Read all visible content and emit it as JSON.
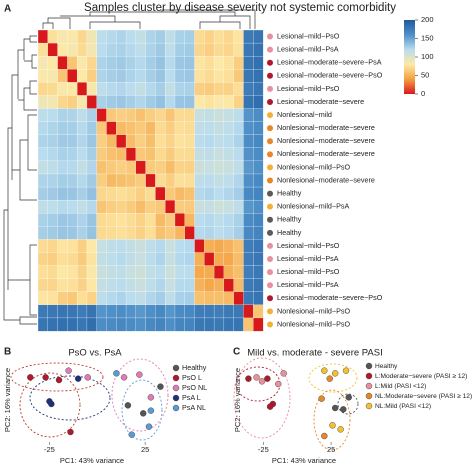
{
  "chart_data": [
    {
      "type": "heatmap",
      "panel": "A",
      "title": "Samples cluster by disease severity not systemic comorbidity",
      "rows": [
        "Lesional−mild−PsO",
        "Lesional−mild−PsA",
        "Lesional−moderate−severe−PsA",
        "Lesional−moderate−severe−PsO",
        "Lesional−mild−PsO",
        "Lesional−moderate−severe",
        "Nonlesional−mild",
        "Nonlesional−moderate−severe",
        "Nonlesional−moderate−severe",
        "Nonlesional−moderate−severe",
        "Nonlesional−mild−PsO",
        "Nonlesional−moderate−severe",
        "Healthy",
        "Nonlesional−mild−PsA",
        "Healthy",
        "Healthy",
        "Lesional−mild−PsO",
        "Lesional−mild−PsA",
        "Lesional−mild−PsO",
        "Lesional−mild−PsA",
        "Lesional−moderate−severe−PsO",
        "Nonlesional−mild−PsO",
        "Nonlesional−mild−PsO"
      ],
      "row_colors": [
        "#e8909c",
        "#e8909c",
        "#b2182b",
        "#b2182b",
        "#e8909c",
        "#b2182b",
        "#f2b134",
        "#e8862a",
        "#e8862a",
        "#e8862a",
        "#f2b134",
        "#e8862a",
        "#5a5a5a",
        "#f2b134",
        "#5a5a5a",
        "#5a5a5a",
        "#e8909c",
        "#e8909c",
        "#e8909c",
        "#e8909c",
        "#b2182b",
        "#f2b134",
        "#f2b134"
      ],
      "z": [
        [
          0,
          75,
          85,
          82,
          70,
          88,
          118,
          122,
          125,
          120,
          115,
          124,
          128,
          116,
          126,
          127,
          72,
          68,
          74,
          70,
          78,
          176,
          180
        ],
        [
          75,
          0,
          80,
          84,
          72,
          86,
          120,
          124,
          126,
          122,
          117,
          125,
          130,
          118,
          128,
          129,
          70,
          66,
          72,
          69,
          76,
          178,
          182
        ],
        [
          85,
          80,
          0,
          60,
          82,
          70,
          125,
          128,
          130,
          126,
          122,
          128,
          133,
          121,
          131,
          132,
          78,
          74,
          80,
          76,
          65,
          180,
          184
        ],
        [
          82,
          84,
          60,
          0,
          80,
          66,
          124,
          127,
          129,
          125,
          121,
          127,
          132,
          120,
          130,
          131,
          76,
          72,
          78,
          75,
          62,
          179,
          183
        ],
        [
          70,
          72,
          82,
          80,
          0,
          84,
          117,
          121,
          123,
          119,
          114,
          122,
          127,
          115,
          125,
          126,
          66,
          64,
          68,
          67,
          74,
          175,
          179
        ],
        [
          88,
          86,
          70,
          66,
          84,
          0,
          126,
          129,
          131,
          127,
          123,
          129,
          134,
          122,
          132,
          133,
          80,
          77,
          82,
          79,
          68,
          181,
          185
        ],
        [
          118,
          120,
          125,
          124,
          117,
          126,
          0,
          62,
          66,
          64,
          58,
          65,
          70,
          60,
          72,
          71,
          112,
          114,
          110,
          113,
          118,
          158,
          162
        ],
        [
          122,
          124,
          128,
          127,
          121,
          129,
          62,
          0,
          55,
          58,
          63,
          54,
          72,
          65,
          74,
          73,
          116,
          118,
          114,
          117,
          122,
          160,
          164
        ],
        [
          125,
          126,
          130,
          129,
          123,
          131,
          66,
          55,
          0,
          56,
          66,
          57,
          74,
          68,
          76,
          75,
          119,
          121,
          117,
          120,
          125,
          162,
          166
        ],
        [
          120,
          122,
          126,
          125,
          119,
          127,
          64,
          58,
          56,
          0,
          62,
          59,
          71,
          64,
          73,
          72,
          114,
          116,
          112,
          115,
          120,
          159,
          163
        ],
        [
          115,
          117,
          122,
          121,
          114,
          123,
          58,
          63,
          66,
          62,
          0,
          64,
          66,
          56,
          68,
          67,
          110,
          112,
          108,
          111,
          116,
          156,
          160
        ],
        [
          124,
          125,
          128,
          127,
          122,
          129,
          65,
          54,
          57,
          59,
          64,
          0,
          73,
          66,
          75,
          74,
          117,
          119,
          115,
          118,
          123,
          161,
          165
        ],
        [
          128,
          130,
          133,
          132,
          127,
          134,
          70,
          72,
          74,
          71,
          66,
          73,
          0,
          62,
          55,
          58,
          122,
          124,
          120,
          123,
          128,
          165,
          169
        ],
        [
          116,
          118,
          121,
          120,
          115,
          122,
          60,
          65,
          68,
          64,
          56,
          66,
          62,
          0,
          64,
          63,
          111,
          113,
          109,
          112,
          117,
          157,
          161
        ],
        [
          126,
          128,
          131,
          130,
          125,
          132,
          72,
          74,
          76,
          73,
          68,
          75,
          55,
          64,
          0,
          52,
          120,
          122,
          118,
          121,
          126,
          164,
          168
        ],
        [
          127,
          129,
          132,
          131,
          126,
          133,
          71,
          73,
          75,
          72,
          67,
          74,
          58,
          63,
          52,
          0,
          121,
          123,
          119,
          122,
          127,
          165,
          169
        ],
        [
          72,
          70,
          78,
          76,
          66,
          80,
          112,
          116,
          119,
          114,
          110,
          117,
          122,
          111,
          120,
          121,
          0,
          48,
          45,
          50,
          58,
          174,
          178
        ],
        [
          68,
          66,
          74,
          72,
          64,
          77,
          114,
          118,
          121,
          116,
          112,
          119,
          124,
          113,
          122,
          123,
          48,
          0,
          46,
          44,
          56,
          175,
          179
        ],
        [
          74,
          72,
          80,
          78,
          68,
          82,
          110,
          114,
          117,
          112,
          108,
          115,
          120,
          109,
          118,
          119,
          45,
          46,
          0,
          49,
          57,
          173,
          177
        ],
        [
          70,
          69,
          76,
          75,
          67,
          79,
          113,
          117,
          120,
          115,
          111,
          118,
          123,
          112,
          121,
          122,
          50,
          44,
          49,
          0,
          55,
          176,
          180
        ],
        [
          78,
          76,
          65,
          62,
          74,
          68,
          118,
          122,
          125,
          120,
          116,
          123,
          128,
          117,
          126,
          127,
          58,
          56,
          57,
          55,
          0,
          177,
          181
        ],
        [
          176,
          178,
          180,
          179,
          175,
          181,
          158,
          160,
          162,
          159,
          156,
          161,
          165,
          157,
          164,
          165,
          174,
          175,
          173,
          176,
          177,
          0,
          60
        ],
        [
          180,
          182,
          184,
          183,
          179,
          185,
          162,
          164,
          166,
          163,
          160,
          165,
          169,
          161,
          168,
          169,
          178,
          179,
          177,
          180,
          181,
          60,
          0
        ]
      ],
      "zlim": [
        0,
        200
      ],
      "colorbar_ticks": [
        0,
        50,
        100,
        150,
        200
      ],
      "colors": [
        "#d7191c",
        "#f4a040",
        "#fde9a6",
        "#b9dcee",
        "#4f90c8",
        "#1f5a9e"
      ]
    },
    {
      "type": "scatter",
      "panel": "B",
      "title": "PsO vs. PsA",
      "x_label": "PC1: 43% variance",
      "y_label": "PC2: 16% variance",
      "xlim": [
        -43,
        38
      ],
      "ylim": [
        -30,
        30
      ],
      "xticks": [
        -25,
        25
      ],
      "series": [
        {
          "name": "Healthy",
          "color": "#555555",
          "x": [
            16,
            24,
            33
          ],
          "y": [
            -4,
            -10,
            10
          ]
        },
        {
          "name": "PsO L",
          "color": "#b2182b",
          "x": [
            -35,
            -27,
            -20,
            -14
          ],
          "y": [
            17,
            17,
            15,
            -24
          ]
        },
        {
          "name": "PsO NL",
          "color": "#e07bb5",
          "x": [
            -15,
            -5,
            14,
            22,
            28
          ],
          "y": [
            22,
            17,
            17,
            19,
            2
          ]
        },
        {
          "name": "PsA L",
          "color": "#1f2f7a",
          "x": [
            -25,
            -24,
            -10
          ],
          "y": [
            -1,
            -3,
            16
          ]
        },
        {
          "name": "PsA NL",
          "color": "#5b9bd5",
          "x": [
            10,
            28,
            27,
            18
          ],
          "y": [
            20,
            -8,
            -20,
            -26
          ]
        }
      ]
    },
    {
      "type": "scatter",
      "panel": "C",
      "title": "Mild vs. moderate - severe PASI",
      "x_label": "PC1: 43% variance",
      "y_label": "PC2: 16% variance",
      "xlim": [
        -40,
        50
      ],
      "ylim": [
        -30,
        30
      ],
      "xticks": [
        -25,
        25
      ],
      "series": [
        {
          "name": "Healthy",
          "color": "#555555",
          "x": [
            34,
            38,
            28
          ],
          "y": [
            -7,
            2,
            -6
          ]
        },
        {
          "name": "L:Moderate−severe (PASI ≥ 12)",
          "color": "#b2182b",
          "x": [
            -36,
            -22,
            -18,
            -20
          ],
          "y": [
            16,
            16,
            -3,
            -5
          ]
        },
        {
          "name": "L:Mild (PASI <12)",
          "color": "#e8909c",
          "x": [
            -30,
            -26,
            -14,
            -10
          ],
          "y": [
            17,
            14,
            12,
            20
          ]
        },
        {
          "name": "NL:Moderate−severe (PASI ≥ 12)",
          "color": "#e8862a",
          "x": [
            24,
            18,
            20
          ],
          "y": [
            16,
            1,
            -27
          ]
        },
        {
          "name": "NL:Mild (PASI <12)",
          "color": "#f2c12e",
          "x": [
            20,
            28,
            36,
            26,
            32
          ],
          "y": [
            22,
            20,
            22,
            -19,
            -22
          ]
        }
      ]
    }
  ]
}
